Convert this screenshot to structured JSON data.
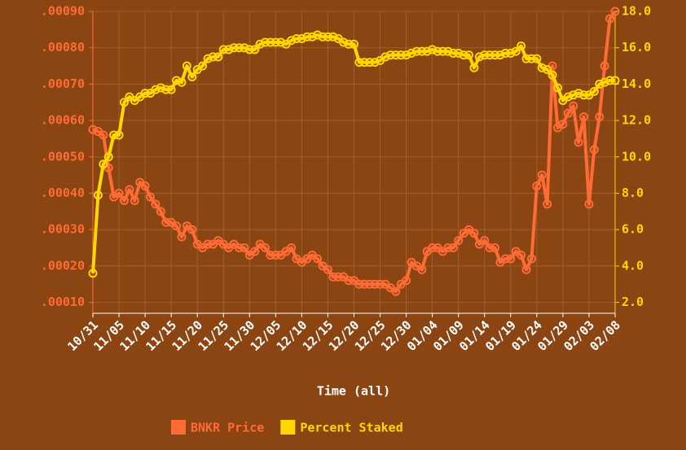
{
  "chart_data": {
    "type": "line",
    "x_label": "Time (all)",
    "categories": [
      "10/31",
      null,
      null,
      null,
      null,
      "11/05",
      null,
      null,
      null,
      null,
      "11/10",
      null,
      null,
      null,
      null,
      "11/15",
      null,
      null,
      null,
      null,
      "11/20",
      null,
      null,
      null,
      null,
      "11/25",
      null,
      null,
      null,
      null,
      "11/30",
      null,
      null,
      null,
      null,
      "12/05",
      null,
      null,
      null,
      null,
      "12/10",
      null,
      null,
      null,
      null,
      "12/15",
      null,
      null,
      null,
      null,
      "12/20",
      null,
      null,
      null,
      null,
      "12/25",
      null,
      null,
      null,
      null,
      "12/30",
      null,
      null,
      null,
      null,
      "01/04",
      null,
      null,
      null,
      null,
      "01/09",
      null,
      null,
      null,
      null,
      "01/14",
      null,
      null,
      null,
      null,
      "01/19",
      null,
      null,
      null,
      null,
      "01/24",
      null,
      null,
      null,
      null,
      "01/29",
      null,
      null,
      null,
      null,
      "02/03",
      null,
      null,
      null,
      null,
      "02/08"
    ],
    "series": [
      {
        "name": "BNKR Price",
        "color": "#ff6b35",
        "values": [
          0.000575,
          0.00057,
          0.00056,
          0.00047,
          0.00039,
          0.0004,
          0.00038,
          0.00041,
          0.00038,
          0.00043,
          0.00042,
          0.00039,
          0.00037,
          0.00035,
          0.00032,
          0.00032,
          0.00031,
          0.00028,
          0.00031,
          0.0003,
          0.00026,
          0.00025,
          0.00026,
          0.00026,
          0.00027,
          0.00026,
          0.00025,
          0.00026,
          0.00025,
          0.00025,
          0.00023,
          0.00024,
          0.00026,
          0.00025,
          0.00023,
          0.00023,
          0.00023,
          0.00024,
          0.00025,
          0.00022,
          0.00021,
          0.00022,
          0.00023,
          0.00022,
          0.0002,
          0.00019,
          0.00017,
          0.00017,
          0.00017,
          0.00016,
          0.00016,
          0.00015,
          0.00015,
          0.00015,
          0.00015,
          0.00015,
          0.00015,
          0.00014,
          0.00013,
          0.00015,
          0.00016,
          0.00021,
          0.0002,
          0.00019,
          0.00024,
          0.00025,
          0.00025,
          0.00024,
          0.00025,
          0.00025,
          0.00027,
          0.00029,
          0.0003,
          0.00029,
          0.00026,
          0.00027,
          0.00025,
          0.00025,
          0.00021,
          0.00022,
          0.00022,
          0.00024,
          0.00023,
          0.00019,
          0.00022,
          0.00042,
          0.00045,
          0.00037,
          0.00075,
          0.00058,
          0.00059,
          0.00062,
          0.00064,
          0.00054,
          0.00061,
          0.00037,
          0.00052,
          0.00061,
          0.00075,
          0.00088,
          0.0009
        ]
      },
      {
        "name": "Percent Staked",
        "color": "#ffd700",
        "axis": "y2",
        "values": [
          3.6,
          7.9,
          9.6,
          10.0,
          11.2,
          11.2,
          13.0,
          13.3,
          13.1,
          13.3,
          13.5,
          13.5,
          13.7,
          13.8,
          13.7,
          13.7,
          14.2,
          14.1,
          15.0,
          14.4,
          14.8,
          15.0,
          15.4,
          15.5,
          15.5,
          15.9,
          15.9,
          16.0,
          16.0,
          16.0,
          15.9,
          15.9,
          16.2,
          16.3,
          16.3,
          16.3,
          16.3,
          16.2,
          16.4,
          16.5,
          16.5,
          16.6,
          16.6,
          16.7,
          16.6,
          16.6,
          16.6,
          16.5,
          16.3,
          16.2,
          16.2,
          15.2,
          15.2,
          15.2,
          15.2,
          15.3,
          15.5,
          15.6,
          15.6,
          15.6,
          15.6,
          15.7,
          15.8,
          15.8,
          15.8,
          15.9,
          15.8,
          15.8,
          15.8,
          15.7,
          15.7,
          15.6,
          15.6,
          14.9,
          15.5,
          15.6,
          15.6,
          15.6,
          15.6,
          15.7,
          15.7,
          15.8,
          16.1,
          15.4,
          15.4,
          15.4,
          14.9,
          14.8,
          14.5,
          13.8,
          13.1,
          13.3,
          13.4,
          13.5,
          13.4,
          13.4,
          13.6,
          14.0,
          14.1,
          14.2,
          14.2
        ]
      }
    ],
    "ylim": [
      7e-05,
      0.0009
    ],
    "yticks": [
      {
        "value": 0.0001,
        "label": ".00010"
      },
      {
        "value": 0.0002,
        "label": ".00020"
      },
      {
        "value": 0.0003,
        "label": ".00030"
      },
      {
        "value": 0.0004,
        "label": ".00040"
      },
      {
        "value": 0.0005,
        "label": ".00050"
      },
      {
        "value": 0.0006,
        "label": ".00060"
      },
      {
        "value": 0.0007,
        "label": ".00070"
      },
      {
        "value": 0.0008,
        "label": ".00080"
      },
      {
        "value": 0.0009,
        "label": ".00090"
      }
    ],
    "y2lim": [
      1.4,
      18.0
    ],
    "y2ticks": [
      {
        "value": 2,
        "label": "2.0"
      },
      {
        "value": 4,
        "label": "4.0"
      },
      {
        "value": 6,
        "label": "6.0"
      },
      {
        "value": 8,
        "label": "8.0"
      },
      {
        "value": 10,
        "label": "10.0"
      },
      {
        "value": 12,
        "label": "12.0"
      },
      {
        "value": 14,
        "label": "14.0"
      },
      {
        "value": 16,
        "label": "16.0"
      },
      {
        "value": 18,
        "label": "18.0"
      }
    ],
    "grid": true,
    "legend": "bottom"
  }
}
